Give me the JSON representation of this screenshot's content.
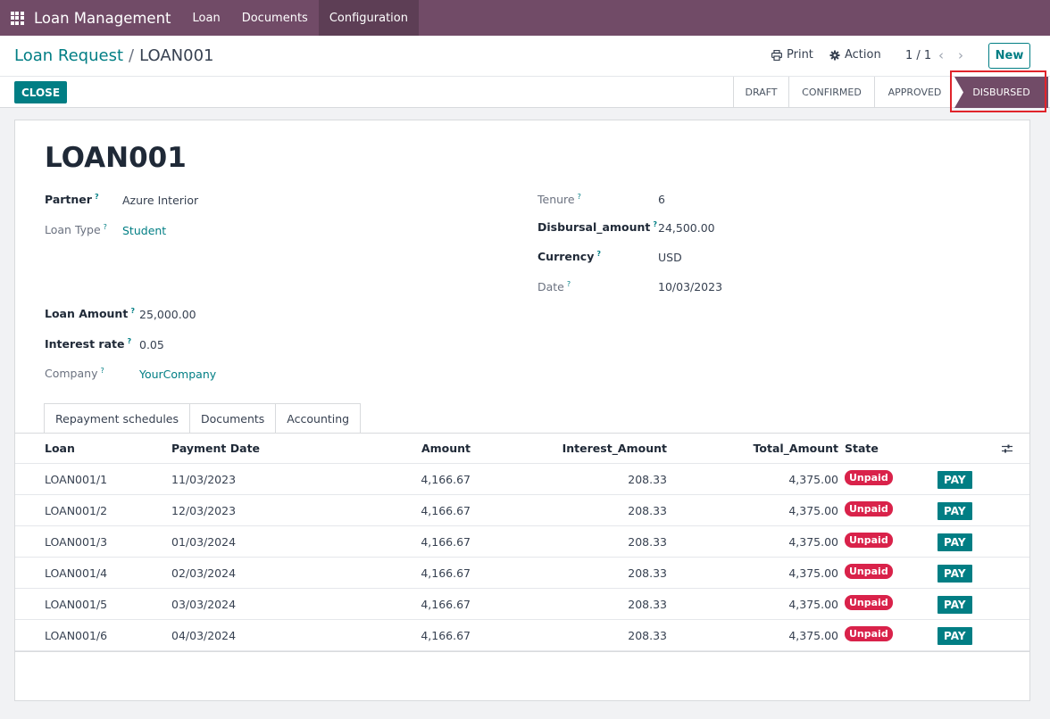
{
  "navbar": {
    "app_name": "Loan Management",
    "menu": [
      "Loan",
      "Documents",
      "Configuration"
    ]
  },
  "control": {
    "breadcrumb_parent": "Loan Request",
    "breadcrumb_sep": "/",
    "breadcrumb_current": "LOAN001",
    "print_label": "Print",
    "action_label": "Action",
    "pager": "1 / 1",
    "new_label": "New",
    "close_label": "CLOSE"
  },
  "statusbar": {
    "stages": [
      "DRAFT",
      "CONFIRMED",
      "APPROVED"
    ],
    "current": "DISBURSED"
  },
  "form": {
    "title": "LOAN001",
    "partner_label": "Partner",
    "partner_value": "Azure Interior",
    "loan_type_label": "Loan Type",
    "loan_type_value": "Student",
    "loan_amount_label": "Loan Amount",
    "loan_amount_value": "25,000.00",
    "interest_rate_label": "Interest rate",
    "interest_rate_value": "0.05",
    "company_label": "Company",
    "company_value": "YourCompany",
    "tenure_label": "Tenure",
    "tenure_value": "6",
    "disbursal_label": "Disbursal_amount",
    "disbursal_value": "24,500.00",
    "currency_label": "Currency",
    "currency_value": "USD",
    "date_label": "Date",
    "date_value": "10/03/2023",
    "help_mark": "?"
  },
  "tabs": [
    "Repayment schedules",
    "Documents",
    "Accounting"
  ],
  "table": {
    "headers": {
      "loan": "Loan",
      "payment_date": "Payment Date",
      "amount": "Amount",
      "interest": "Interest_Amount",
      "total": "Total_Amount",
      "state": "State"
    },
    "pay_label": "PAY",
    "rows": [
      {
        "loan": "LOAN001/1",
        "date": "11/03/2023",
        "amount": "4,166.67",
        "interest": "208.33",
        "total": "4,375.00",
        "state": "Unpaid"
      },
      {
        "loan": "LOAN001/2",
        "date": "12/03/2023",
        "amount": "4,166.67",
        "interest": "208.33",
        "total": "4,375.00",
        "state": "Unpaid"
      },
      {
        "loan": "LOAN001/3",
        "date": "01/03/2024",
        "amount": "4,166.67",
        "interest": "208.33",
        "total": "4,375.00",
        "state": "Unpaid"
      },
      {
        "loan": "LOAN001/4",
        "date": "02/03/2024",
        "amount": "4,166.67",
        "interest": "208.33",
        "total": "4,375.00",
        "state": "Unpaid"
      },
      {
        "loan": "LOAN001/5",
        "date": "03/03/2024",
        "amount": "4,166.67",
        "interest": "208.33",
        "total": "4,375.00",
        "state": "Unpaid"
      },
      {
        "loan": "LOAN001/6",
        "date": "04/03/2024",
        "amount": "4,166.67",
        "interest": "208.33",
        "total": "4,375.00",
        "state": "Unpaid"
      }
    ]
  },
  "icons": {
    "apps": "apps-grid-icon",
    "print": "printer-icon",
    "action": "gear-icon",
    "prev": "chevron-left-icon",
    "next": "chevron-right-icon",
    "optional_columns": "sliders-icon"
  },
  "colors": {
    "brand": "#714b67",
    "primary": "#017e84",
    "danger": "#d9224a",
    "highlight": "#e0242b"
  }
}
